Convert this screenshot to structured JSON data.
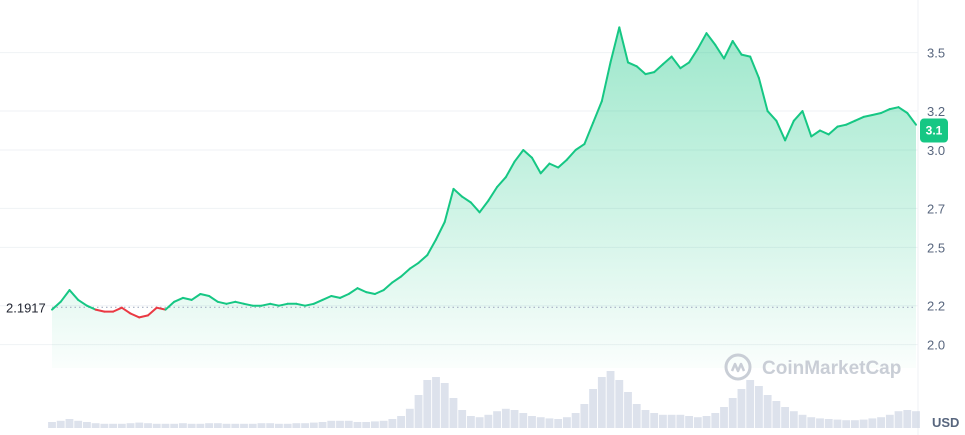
{
  "chart_data": {
    "type": "area",
    "y_ticks": [
      2.0,
      2.2,
      2.5,
      2.7,
      3.0,
      3.2,
      3.5
    ],
    "y_tick_labels": [
      "2.0",
      "2.2",
      "2.5",
      "2.7",
      "3.0",
      "3.2",
      "3.5"
    ],
    "ylim": [
      1.88,
      3.75
    ],
    "reference_price": 2.1917,
    "reference_label": "2.1917",
    "current_price": 3.1,
    "current_price_label": "3.1",
    "currency": "USD",
    "watermark": "CoinMarketCap",
    "grid": true,
    "x_count": 100,
    "values": [
      2.18,
      2.22,
      2.28,
      2.23,
      2.2,
      2.18,
      2.17,
      2.17,
      2.19,
      2.16,
      2.14,
      2.15,
      2.19,
      2.18,
      2.22,
      2.24,
      2.23,
      2.26,
      2.25,
      2.22,
      2.21,
      2.22,
      2.21,
      2.2,
      2.2,
      2.21,
      2.2,
      2.21,
      2.21,
      2.2,
      2.21,
      2.23,
      2.25,
      2.24,
      2.26,
      2.29,
      2.27,
      2.26,
      2.28,
      2.32,
      2.35,
      2.39,
      2.42,
      2.46,
      2.54,
      2.63,
      2.8,
      2.76,
      2.73,
      2.68,
      2.74,
      2.81,
      2.86,
      2.94,
      3.0,
      2.96,
      2.88,
      2.93,
      2.91,
      2.95,
      3.0,
      3.03,
      3.14,
      3.25,
      3.45,
      3.63,
      3.45,
      3.43,
      3.39,
      3.4,
      3.44,
      3.48,
      3.42,
      3.45,
      3.52,
      3.6,
      3.54,
      3.47,
      3.56,
      3.49,
      3.48,
      3.37,
      3.2,
      3.15,
      3.05,
      3.15,
      3.2,
      3.07,
      3.1,
      3.08,
      3.12,
      3.13,
      3.15,
      3.17,
      3.18,
      3.19,
      3.21,
      3.22,
      3.19,
      3.13
    ],
    "volume": [
      0.1,
      0.12,
      0.15,
      0.12,
      0.1,
      0.08,
      0.07,
      0.07,
      0.07,
      0.08,
      0.09,
      0.08,
      0.07,
      0.07,
      0.07,
      0.08,
      0.07,
      0.07,
      0.08,
      0.08,
      0.07,
      0.07,
      0.07,
      0.07,
      0.08,
      0.08,
      0.07,
      0.07,
      0.08,
      0.08,
      0.09,
      0.1,
      0.12,
      0.12,
      0.12,
      0.1,
      0.1,
      0.11,
      0.12,
      0.15,
      0.2,
      0.32,
      0.55,
      0.8,
      0.85,
      0.75,
      0.5,
      0.3,
      0.2,
      0.18,
      0.22,
      0.28,
      0.32,
      0.3,
      0.25,
      0.2,
      0.18,
      0.16,
      0.15,
      0.18,
      0.25,
      0.4,
      0.65,
      0.85,
      0.95,
      0.8,
      0.6,
      0.4,
      0.3,
      0.25,
      0.22,
      0.22,
      0.22,
      0.2,
      0.18,
      0.2,
      0.25,
      0.35,
      0.5,
      0.65,
      0.8,
      0.7,
      0.55,
      0.45,
      0.35,
      0.28,
      0.22,
      0.18,
      0.16,
      0.15,
      0.14,
      0.13,
      0.13,
      0.14,
      0.16,
      0.18,
      0.22,
      0.28,
      0.3,
      0.28
    ],
    "colors": {
      "up_line": "#16c784",
      "down_line": "#ea3943",
      "area_top": "#16c784",
      "grid": "#eff2f5",
      "volume": "#cfd6e4",
      "badge": "#16c784",
      "reference_line": "#a6b0c3"
    }
  }
}
